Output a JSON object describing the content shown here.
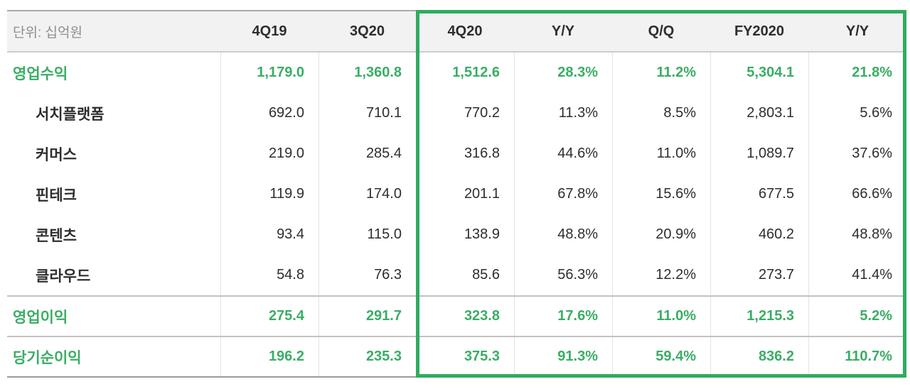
{
  "colors": {
    "accent_green": "#3bad66",
    "highlight_border_green": "#2fac5f",
    "header_background": "#f2f2f2",
    "grid_line": "#e3e3e3",
    "rule_line": "#c2c2c2",
    "text_dark": "#2d2d2d",
    "unit_text_gray": "#8f8f8f"
  },
  "chart_data": {
    "type": "table",
    "unit_label": "단위: 십억원",
    "columns": [
      "4Q19",
      "3Q20",
      "4Q20",
      "Y/Y",
      "Q/Q",
      "FY2020",
      "Y/Y"
    ],
    "highlighted_columns": [
      "4Q20",
      "Y/Y",
      "Q/Q",
      "FY2020",
      "Y/Y"
    ],
    "rows": [
      {
        "label": "영업수익",
        "style": "group",
        "separator_above": false,
        "values": [
          "1,179.0",
          "1,360.8",
          "1,512.6",
          "28.3%",
          "11.2%",
          "5,304.1",
          "21.8%"
        ]
      },
      {
        "label": "서치플랫폼",
        "style": "sub",
        "separator_above": false,
        "values": [
          "692.0",
          "710.1",
          "770.2",
          "11.3%",
          "8.5%",
          "2,803.1",
          "5.6%"
        ]
      },
      {
        "label": "커머스",
        "style": "sub",
        "separator_above": false,
        "values": [
          "219.0",
          "285.4",
          "316.8",
          "44.6%",
          "11.0%",
          "1,089.7",
          "37.6%"
        ]
      },
      {
        "label": "핀테크",
        "style": "sub",
        "separator_above": false,
        "values": [
          "119.9",
          "174.0",
          "201.1",
          "67.8%",
          "15.6%",
          "677.5",
          "66.6%"
        ]
      },
      {
        "label": "콘텐츠",
        "style": "sub",
        "separator_above": false,
        "values": [
          "93.4",
          "115.0",
          "138.9",
          "48.8%",
          "20.9%",
          "460.2",
          "48.8%"
        ]
      },
      {
        "label": "클라우드",
        "style": "sub",
        "separator_above": false,
        "values": [
          "54.8",
          "76.3",
          "85.6",
          "56.3%",
          "12.2%",
          "273.7",
          "41.4%"
        ]
      },
      {
        "label": "영업이익",
        "style": "group",
        "separator_above": true,
        "values": [
          "275.4",
          "291.7",
          "323.8",
          "17.6%",
          "11.0%",
          "1,215.3",
          "5.2%"
        ]
      },
      {
        "label": "당기순이익",
        "style": "group",
        "separator_above": true,
        "values": [
          "196.2",
          "235.3",
          "375.3",
          "91.3%",
          "59.4%",
          "836.2",
          "110.7%"
        ]
      }
    ]
  }
}
